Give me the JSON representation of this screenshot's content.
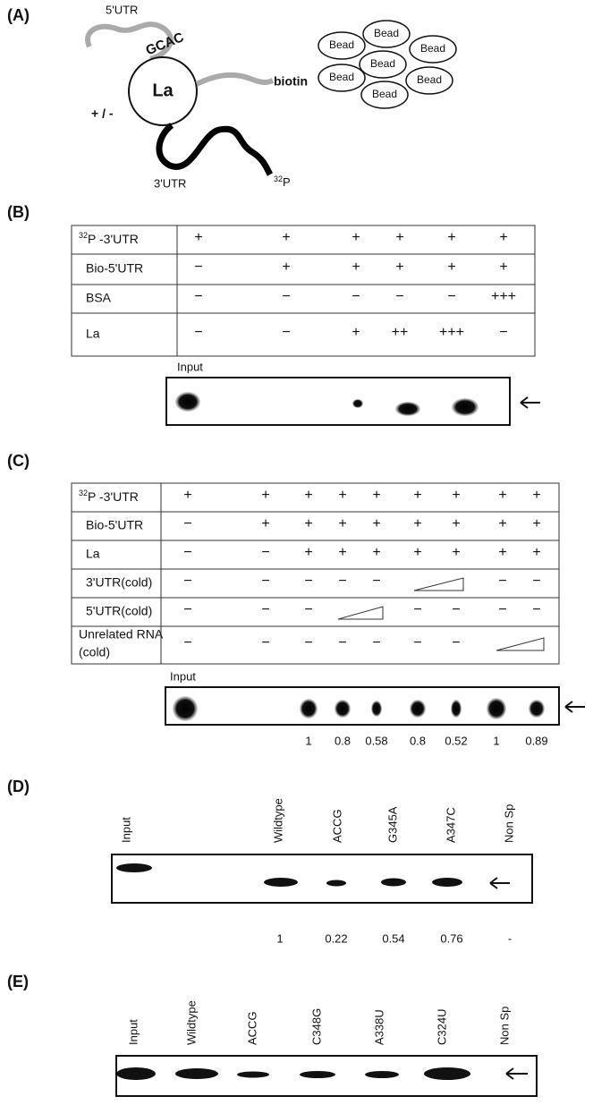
{
  "panel_a": {
    "label": "(A)",
    "five_utr": "5'UTR",
    "motif": "GCAC",
    "protein": "La",
    "presence": "+ / -",
    "tag": "biotin",
    "beads": [
      "Bead",
      "Bead",
      "Bead",
      "Bead",
      "Bead",
      "Bead",
      "Bead"
    ],
    "three_utr": "3'UTR",
    "isotope": {
      "sup": "32",
      "text": "P"
    }
  },
  "panel_b": {
    "label": "(B)",
    "rows": [
      {
        "name": {
          "sup": "32",
          "text": "P -3'UTR"
        },
        "cells": [
          "+",
          "+",
          "+",
          "+",
          "+",
          "+"
        ]
      },
      {
        "name": "Bio-5'UTR",
        "cells": [
          "−",
          "+",
          "+",
          "+",
          "+",
          "+"
        ]
      },
      {
        "name": "BSA",
        "cells": [
          "−",
          "−",
          "−",
          "−",
          "−",
          "+++"
        ]
      },
      {
        "name": "La",
        "cells": [
          "−",
          "−",
          "+",
          "++",
          "+++",
          "−"
        ]
      }
    ],
    "gel": {
      "input": "Input"
    }
  },
  "panel_c": {
    "label": "(C)",
    "rows": [
      {
        "name": {
          "sup": "32",
          "text": "P -3'UTR"
        },
        "cells": [
          "+",
          "+",
          "+",
          "+",
          "+",
          "+",
          "+",
          "+",
          "+"
        ]
      },
      {
        "name": "Bio-5'UTR",
        "cells": [
          "−",
          "+",
          "+",
          "+",
          "+",
          "+",
          "+",
          "+",
          "+"
        ]
      },
      {
        "name": "La",
        "cells": [
          "−",
          "−",
          "+",
          "+",
          "+",
          "+",
          "+",
          "+",
          "+"
        ]
      },
      {
        "name": "3'UTR(cold)",
        "cells": [
          "−",
          "−",
          "−",
          "−",
          "−",
          null,
          null,
          "−",
          "−"
        ]
      },
      {
        "name": "5'UTR(cold)",
        "cells": [
          "−",
          "−",
          "−",
          null,
          null,
          "−",
          "−",
          "−",
          "−"
        ]
      },
      {
        "name": [
          "Unrelated RNA",
          "(cold)"
        ],
        "cells": [
          "−",
          "−",
          "−",
          "−",
          "−",
          "−",
          "−",
          null,
          null
        ]
      }
    ],
    "gel": {
      "input": "Input",
      "values": [
        1,
        0.8,
        0.58,
        0.8,
        0.52,
        1,
        0.89
      ]
    }
  },
  "panel_d": {
    "label": "(D)",
    "lanes": [
      "Input",
      "Wildtype",
      "ACCG",
      "G345A",
      "A347C",
      "Non Sp"
    ],
    "values": [
      1,
      0.22,
      0.54,
      0.76,
      "-"
    ]
  },
  "panel_e": {
    "label": "(E)",
    "lanes": [
      "Input",
      "Wildtype",
      "ACCG",
      "C348G",
      "A338U",
      "C324U",
      "Non Sp"
    ]
  }
}
